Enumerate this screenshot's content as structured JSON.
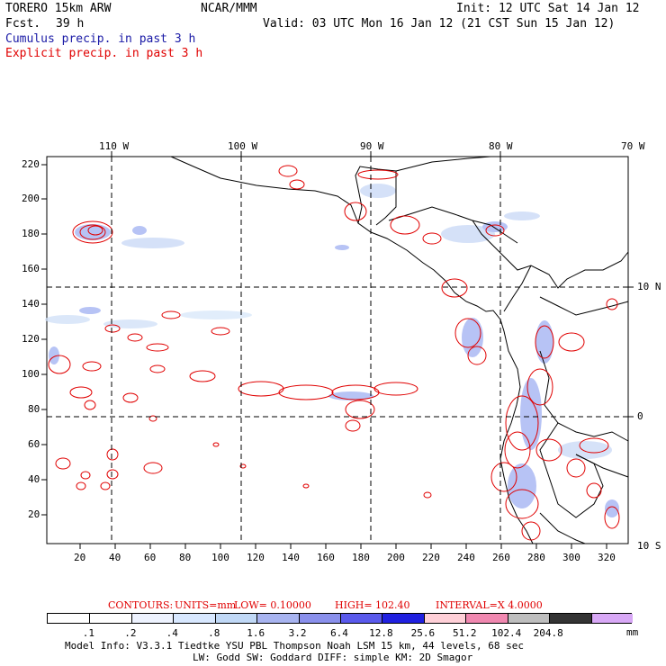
{
  "header": {
    "model": "TORERO  15km ARW",
    "org": "NCAR/MMM",
    "init": "Init: 12 UTC Sat 14 Jan 12",
    "fcst_label": "Fcst.",
    "fcst_value": "39 h",
    "valid": "Valid: 03 UTC Mon 16 Jan 12 (21 CST Sun 15 Jan 12)",
    "field_blue": "Cumulus precip. in past 3 h",
    "field_red": "Explicit precip. in past 3 h"
  },
  "colors": {
    "blue_text": "#1a1aa6",
    "red_text": "#e00000",
    "contour": "#e00000"
  },
  "top_lon_labels": [
    "110 W",
    "100 W",
    "90 W",
    "80 W",
    "70 W"
  ],
  "right_lat_labels": [
    "10 N",
    "0",
    "10 S"
  ],
  "y_ticks": [
    "220",
    "200",
    "180",
    "160",
    "140",
    "120",
    "100",
    "80",
    "60",
    "40",
    "20"
  ],
  "x_ticks": [
    "20",
    "40",
    "60",
    "80",
    "100",
    "120",
    "140",
    "160",
    "180",
    "200",
    "220",
    "240",
    "260",
    "280",
    "300",
    "320"
  ],
  "contour_info": {
    "contours": "CONTOURS:",
    "units": "UNITS=mm",
    "low": "LOW= 0.10000",
    "high": "HIGH=  102.40",
    "interval": "INTERVAL=X  4.0000"
  },
  "colorbar": {
    "colors": [
      "#ffffff",
      "#ffffff",
      "#eef3ff",
      "#d8e8ff",
      "#c0d8f6",
      "#a8b4f0",
      "#8a90ec",
      "#5a5aec",
      "#2020e0",
      "#ffd0d8",
      "#f088b0",
      "#bebebe",
      "#343434",
      "#d8a8f6"
    ],
    "labels": [
      ".1",
      ".2",
      ".4",
      ".8",
      "1.6",
      "3.2",
      "6.4",
      "12.8",
      "25.6",
      "51.2",
      "102.4",
      "204.8"
    ],
    "unit": "mm"
  },
  "footer": {
    "line1": "Model Info: V3.3.1   Tiedtke YSU PBL  Thompson    Noah LSM  15 km,   44 levels,   68 sec",
    "line2": "LW: Godd SW: Goddard DIFF: simple KM: 2D Smagor"
  }
}
